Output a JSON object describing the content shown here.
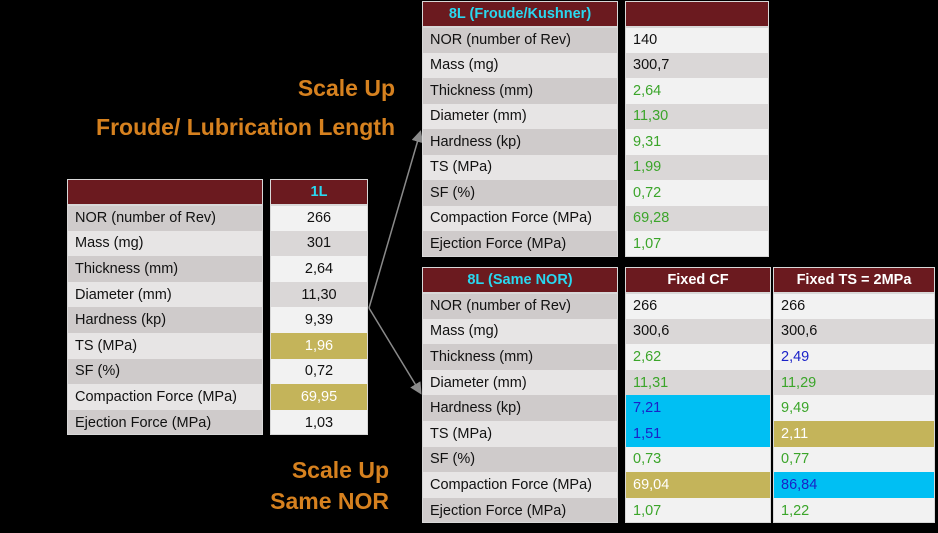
{
  "headings": {
    "scale_up_1": "Scale Up",
    "froude": "Froude/ Lubrication Length",
    "scale_up_2": "Scale Up",
    "same_nor": "Same NOR"
  },
  "rows": [
    "NOR (number of Rev)",
    "Mass (mg)",
    "Thickness (mm)",
    "Diameter (mm)",
    "Hardness (kp)",
    "TS (MPa)",
    "SF (%)",
    "Compaction Force (MPa)",
    "Ejection Force (MPa)"
  ],
  "table_1l": {
    "header": "1L",
    "values": [
      "266",
      "301",
      "2,64",
      "11,30",
      "9,39",
      "1,96",
      "0,72",
      "69,95",
      "1,03"
    ]
  },
  "table_froude": {
    "header": "8L (Froude/Kushner)",
    "values": [
      "140",
      "300,7",
      "2,64",
      "11,30",
      "9,31",
      "1,99",
      "0,72",
      "69,28",
      "1,07"
    ]
  },
  "table_same_nor": {
    "header": "8L (Same NOR)",
    "col1_header": "Fixed CF",
    "col2_header": "Fixed TS = 2MPa",
    "col1": [
      "266",
      "300,6",
      "2,62",
      "11,31",
      "7,21",
      "1,51",
      "0,73",
      "69,04",
      "1,07"
    ],
    "col2": [
      "266",
      "300,6",
      "2,49",
      "11,29",
      "9,49",
      "2,11",
      "0,77",
      "86,84",
      "1,22"
    ]
  },
  "colors": {
    "accent": "#D6811F",
    "header_bg": "#6B1A1F",
    "cyan_text": "#29D8F0",
    "highlight_gold": "#C4B45A",
    "highlight_cyan": "#00BFF3",
    "green_text": "#3BA52A",
    "blue_text": "#1A22C8"
  }
}
